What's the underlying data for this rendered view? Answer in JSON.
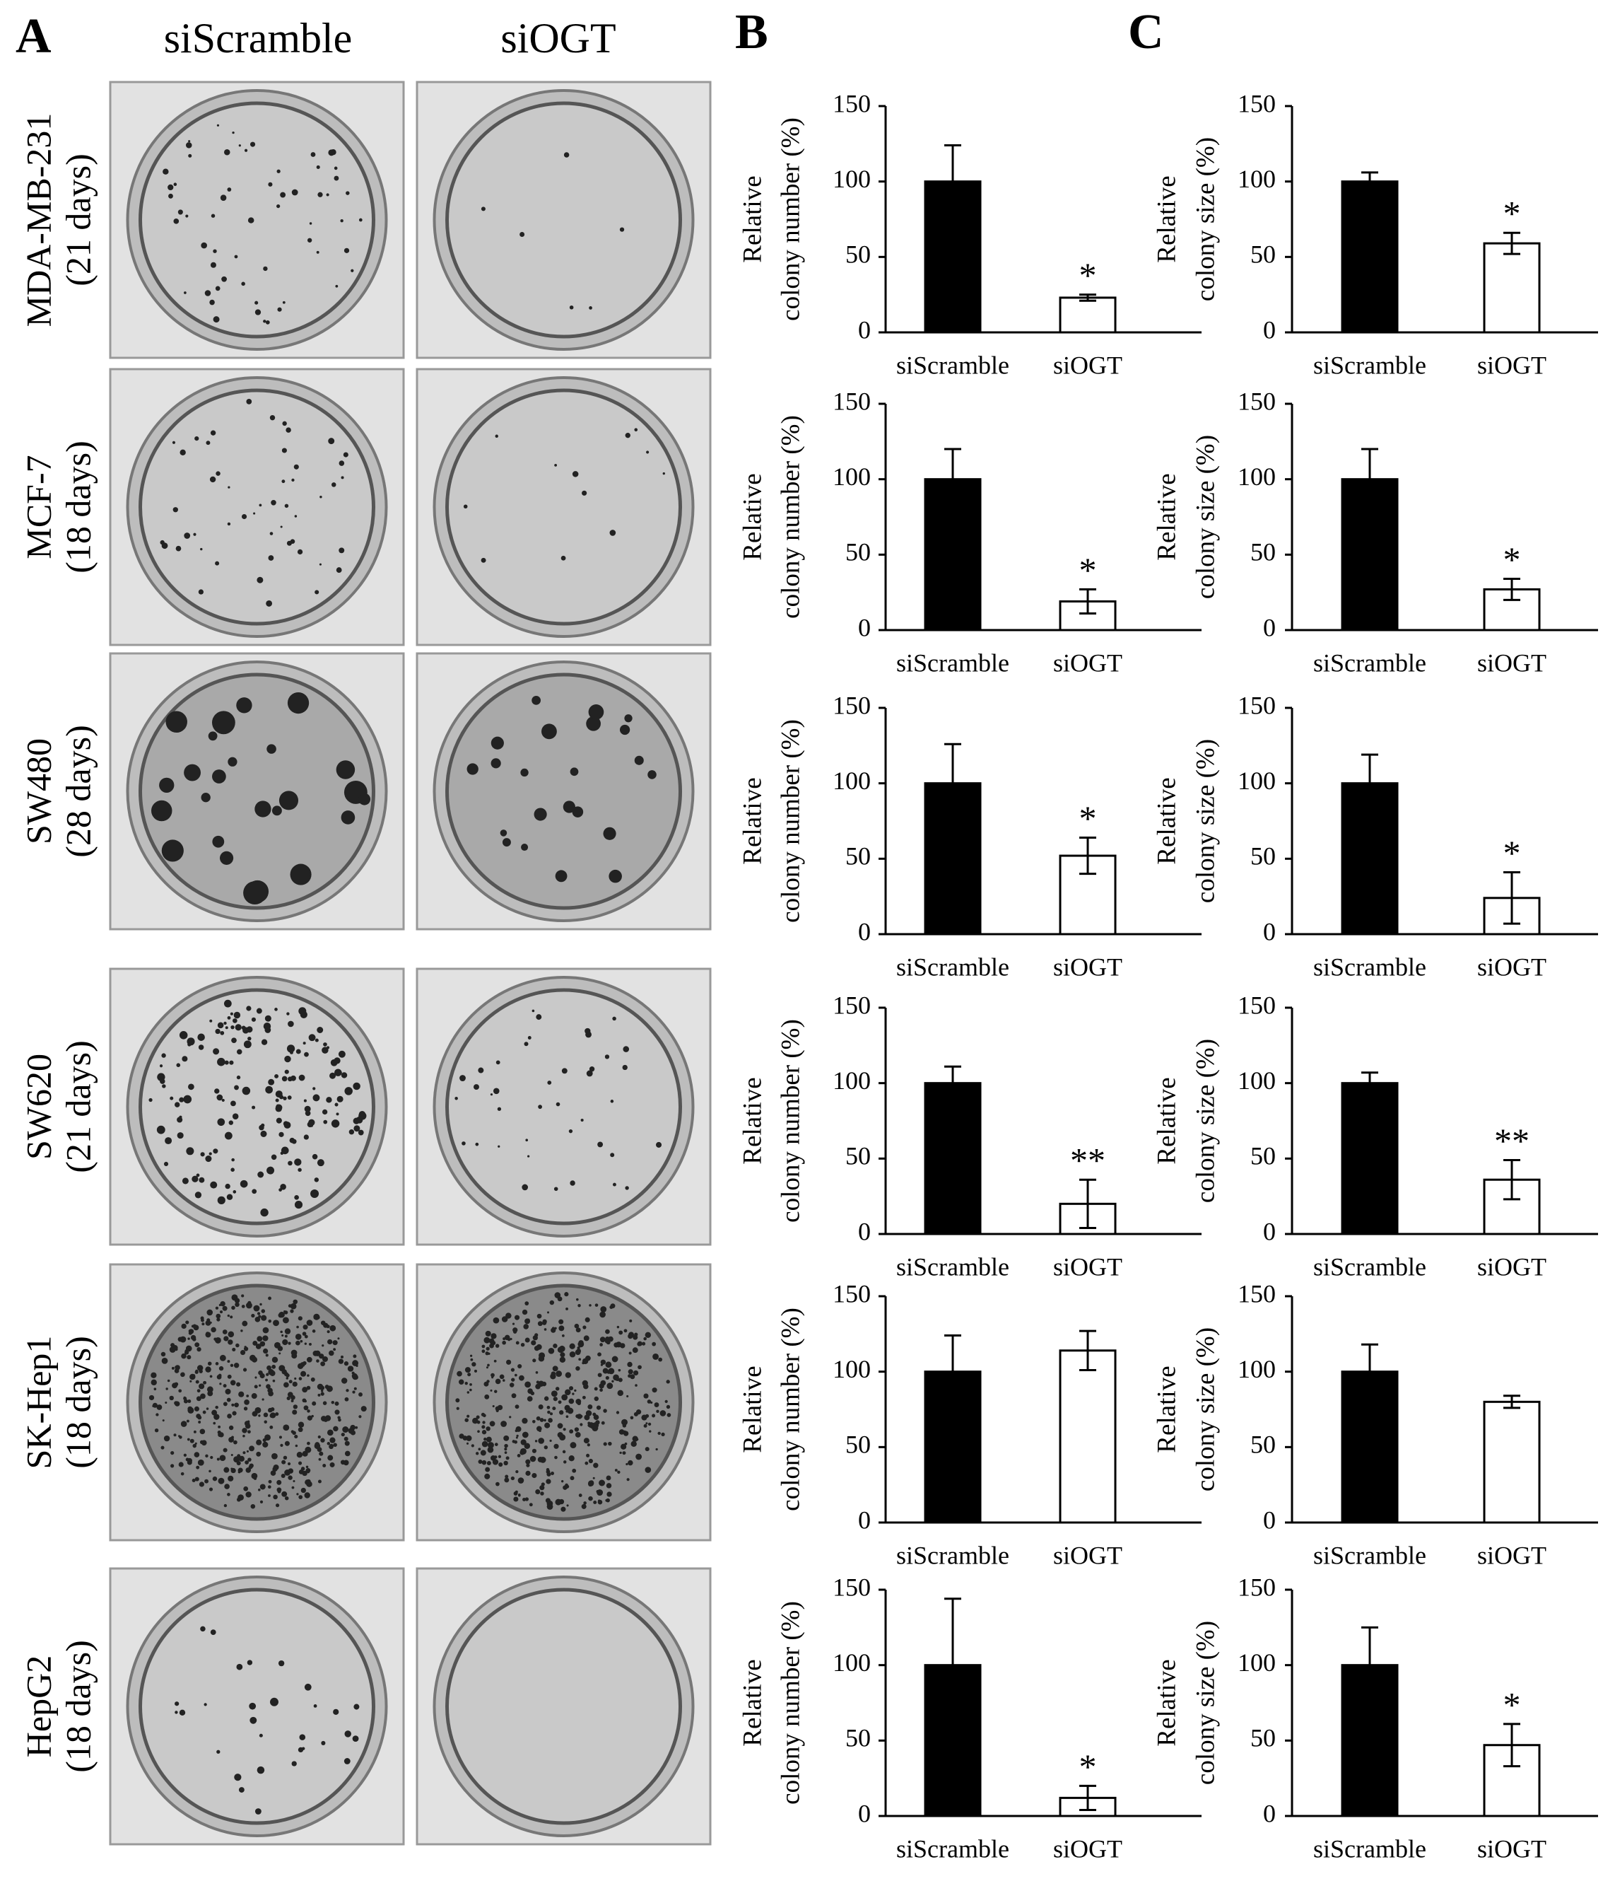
{
  "panel_labels": [
    "A",
    "B",
    "C"
  ],
  "columns": [
    "siScramble",
    "siOGT"
  ],
  "rows": [
    {
      "name": "MDA-MB-231",
      "days": "(21 days)"
    },
    {
      "name": "MCF-7",
      "days": "(18 days)"
    },
    {
      "name": "SW480",
      "days": "(28 days)"
    },
    {
      "name": "SW620",
      "days": "(21 days)"
    },
    {
      "name": "SK-Hep1",
      "days": "(18 days)"
    },
    {
      "name": "HepG2",
      "days": "(18 days)"
    }
  ],
  "chart_data": [
    {
      "type": "bar",
      "ylabel": [
        "Relative",
        "colony number  (%)"
      ],
      "categories": [
        "siScramble",
        "siOGT"
      ],
      "values": [
        100,
        23
      ],
      "errors": [
        24,
        2
      ],
      "annotations": [
        null,
        "*"
      ],
      "colors": [
        "#000000",
        "#ffffff"
      ],
      "ylim": [
        0,
        150
      ],
      "yticks": [
        0,
        50,
        100,
        150
      ]
    },
    {
      "type": "bar",
      "ylabel": [
        "Relative",
        "colony number  (%)"
      ],
      "categories": [
        "siScramble",
        "siOGT"
      ],
      "values": [
        100,
        19
      ],
      "errors": [
        20,
        8
      ],
      "annotations": [
        null,
        "*"
      ],
      "colors": [
        "#000000",
        "#ffffff"
      ],
      "ylim": [
        0,
        150
      ],
      "yticks": [
        0,
        50,
        100,
        150
      ]
    },
    {
      "type": "bar",
      "ylabel": [
        "Relative",
        "colony number  (%)"
      ],
      "categories": [
        "siScramble",
        "siOGT"
      ],
      "values": [
        100,
        52
      ],
      "errors": [
        26,
        12
      ],
      "annotations": [
        null,
        "*"
      ],
      "colors": [
        "#000000",
        "#ffffff"
      ],
      "ylim": [
        0,
        150
      ],
      "yticks": [
        0,
        50,
        100,
        150
      ]
    },
    {
      "type": "bar",
      "ylabel": [
        "Relative",
        "colony number  (%)"
      ],
      "categories": [
        "siScramble",
        "siOGT"
      ],
      "values": [
        100,
        20
      ],
      "errors": [
        11,
        16
      ],
      "annotations": [
        null,
        "**"
      ],
      "colors": [
        "#000000",
        "#ffffff"
      ],
      "ylim": [
        0,
        150
      ],
      "yticks": [
        0,
        50,
        100,
        150
      ]
    },
    {
      "type": "bar",
      "ylabel": [
        "Relative",
        "colony number  (%)"
      ],
      "categories": [
        "siScramble",
        "siOGT"
      ],
      "values": [
        100,
        114
      ],
      "errors": [
        24,
        13
      ],
      "colors": [
        "#000000",
        "#ffffff"
      ],
      "ylim": [
        0,
        150
      ],
      "yticks": [
        0,
        50,
        100,
        150
      ]
    },
    {
      "type": "bar",
      "ylabel": [
        "Relative",
        "colony number  (%)"
      ],
      "categories": [
        "siScramble",
        "siOGT"
      ],
      "values": [
        100,
        12
      ],
      "errors": [
        44,
        8
      ],
      "annotations": [
        null,
        "*"
      ],
      "colors": [
        "#000000",
        "#ffffff"
      ],
      "ylim": [
        0,
        150
      ],
      "yticks": [
        0,
        50,
        100,
        150
      ]
    },
    {
      "type": "bar",
      "ylabel": [
        "Relative",
        "colony size  (%)"
      ],
      "categories": [
        "siScramble",
        "siOGT"
      ],
      "values": [
        100,
        59
      ],
      "errors": [
        6,
        7
      ],
      "annotations": [
        null,
        "*"
      ],
      "colors": [
        "#000000",
        "#ffffff"
      ],
      "ylim": [
        0,
        150
      ],
      "yticks": [
        0,
        50,
        100,
        150
      ]
    },
    {
      "type": "bar",
      "ylabel": [
        "Relative",
        "colony size  (%)"
      ],
      "categories": [
        "siScramble",
        "siOGT"
      ],
      "values": [
        100,
        27
      ],
      "errors": [
        20,
        7
      ],
      "annotations": [
        null,
        "*"
      ],
      "colors": [
        "#000000",
        "#ffffff"
      ],
      "ylim": [
        0,
        150
      ],
      "yticks": [
        0,
        50,
        100,
        150
      ]
    },
    {
      "type": "bar",
      "ylabel": [
        "Relative",
        "colony size  (%)"
      ],
      "categories": [
        "siScramble",
        "siOGT"
      ],
      "values": [
        100,
        24
      ],
      "errors": [
        19,
        17
      ],
      "annotations": [
        null,
        "*"
      ],
      "colors": [
        "#000000",
        "#ffffff"
      ],
      "ylim": [
        0,
        150
      ],
      "yticks": [
        0,
        50,
        100,
        150
      ]
    },
    {
      "type": "bar",
      "ylabel": [
        "Relative",
        "colony size  (%)"
      ],
      "categories": [
        "siScramble",
        "siOGT"
      ],
      "values": [
        100,
        36
      ],
      "errors": [
        7,
        13
      ],
      "annotations": [
        null,
        "**"
      ],
      "colors": [
        "#000000",
        "#ffffff"
      ],
      "ylim": [
        0,
        150
      ],
      "yticks": [
        0,
        50,
        100,
        150
      ]
    },
    {
      "type": "bar",
      "ylabel": [
        "Relative",
        "colony size  (%)"
      ],
      "categories": [
        "siScramble",
        "siOGT"
      ],
      "values": [
        100,
        80
      ],
      "errors": [
        18,
        4
      ],
      "colors": [
        "#000000",
        "#ffffff"
      ],
      "ylim": [
        0,
        150
      ],
      "yticks": [
        0,
        50,
        100,
        150
      ]
    },
    {
      "type": "bar",
      "ylabel": [
        "Relative",
        "colony size  (%)"
      ],
      "categories": [
        "siScramble",
        "siOGT"
      ],
      "values": [
        100,
        47
      ],
      "errors": [
        25,
        14
      ],
      "annotations": [
        null,
        "*"
      ],
      "colors": [
        "#000000",
        "#ffffff"
      ],
      "ylim": [
        0,
        150
      ],
      "yticks": [
        0,
        50,
        100,
        150
      ]
    }
  ]
}
